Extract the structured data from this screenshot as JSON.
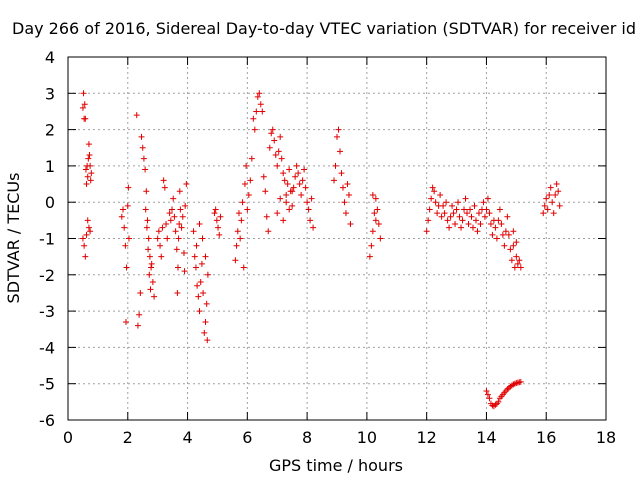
{
  "chart_data": {
    "type": "scatter",
    "title": "Day 266 of 2016, Sidereal Day-to-day VTEC variation (SDTVAR) for receiver id",
    "xlabel": "GPS time / hours",
    "ylabel": "SDTVAR / TECUs",
    "xlim": [
      0,
      18
    ],
    "ylim": [
      -6,
      4
    ],
    "xticks": [
      "0",
      "2",
      "4",
      "6",
      "8",
      "10",
      "12",
      "14",
      "16",
      "18"
    ],
    "yticks": [
      "4",
      "3",
      "2",
      "1",
      "0",
      "-1",
      "-2",
      "-3",
      "-4",
      "-5",
      "-6"
    ],
    "grid": true,
    "marker": "+",
    "color": "#e00000",
    "series": [
      {
        "name": "SDTVAR",
        "points": [
          [
            0.5,
            2.6
          ],
          [
            0.52,
            3.0
          ],
          [
            0.54,
            2.3
          ],
          [
            0.56,
            2.7
          ],
          [
            0.58,
            2.3
          ],
          [
            0.6,
            0.9
          ],
          [
            0.62,
            0.5
          ],
          [
            0.64,
            1.0
          ],
          [
            0.66,
            0.7
          ],
          [
            0.68,
            1.2
          ],
          [
            0.7,
            1.6
          ],
          [
            0.72,
            1.3
          ],
          [
            0.74,
            1.0
          ],
          [
            0.76,
            0.6
          ],
          [
            0.78,
            0.8
          ],
          [
            0.5,
            -1.0
          ],
          [
            0.54,
            -1.2
          ],
          [
            0.58,
            -1.5
          ],
          [
            0.62,
            -0.9
          ],
          [
            0.66,
            -0.5
          ],
          [
            0.7,
            -0.7
          ],
          [
            0.74,
            -0.8
          ],
          [
            1.8,
            -0.4
          ],
          [
            1.84,
            -0.2
          ],
          [
            1.88,
            -0.7
          ],
          [
            1.92,
            -1.2
          ],
          [
            1.96,
            -1.8
          ],
          [
            2.0,
            -0.1
          ],
          [
            2.02,
            0.4
          ],
          [
            1.94,
            -3.3
          ],
          [
            2.04,
            -1.0
          ],
          [
            2.3,
            2.4
          ],
          [
            2.34,
            -3.4
          ],
          [
            2.38,
            -3.1
          ],
          [
            2.42,
            -2.5
          ],
          [
            2.46,
            1.8
          ],
          [
            2.5,
            1.5
          ],
          [
            2.54,
            1.2
          ],
          [
            2.58,
            0.9
          ],
          [
            2.62,
            0.3
          ],
          [
            2.66,
            -0.5
          ],
          [
            2.7,
            -1.0
          ],
          [
            2.74,
            -1.5
          ],
          [
            2.78,
            -1.8
          ],
          [
            2.6,
            -0.2
          ],
          [
            2.64,
            -0.7
          ],
          [
            2.68,
            -1.3
          ],
          [
            2.72,
            -2.0
          ],
          [
            2.76,
            -2.4
          ],
          [
            2.8,
            -1.7
          ],
          [
            2.84,
            -2.2
          ],
          [
            2.88,
            -2.6
          ],
          [
            3.0,
            -1.0
          ],
          [
            3.04,
            -0.8
          ],
          [
            3.08,
            -1.2
          ],
          [
            3.12,
            -1.5
          ],
          [
            3.16,
            -0.7
          ],
          [
            3.2,
            0.6
          ],
          [
            3.24,
            0.4
          ],
          [
            3.28,
            -0.6
          ],
          [
            3.32,
            -1.0
          ],
          [
            3.4,
            -0.3
          ],
          [
            3.44,
            -0.5
          ],
          [
            3.48,
            -0.2
          ],
          [
            3.52,
            0.1
          ],
          [
            3.56,
            -0.4
          ],
          [
            3.6,
            -0.8
          ],
          [
            3.64,
            -1.3
          ],
          [
            3.66,
            -2.5
          ],
          [
            3.68,
            -1.8
          ],
          [
            3.7,
            -1.0
          ],
          [
            3.72,
            -0.6
          ],
          [
            3.74,
            0.3
          ],
          [
            3.76,
            -0.2
          ],
          [
            3.8,
            -0.7
          ],
          [
            3.84,
            -0.4
          ],
          [
            3.88,
            -1.4
          ],
          [
            3.9,
            -1.9
          ],
          [
            3.92,
            -0.1
          ],
          [
            3.96,
            0.5
          ],
          [
            4.2,
            -0.8
          ],
          [
            4.24,
            -1.5
          ],
          [
            4.28,
            -1.8
          ],
          [
            4.32,
            -2.3
          ],
          [
            4.36,
            -2.6
          ],
          [
            4.4,
            -3.0
          ],
          [
            4.44,
            -2.2
          ],
          [
            4.48,
            -1.7
          ],
          [
            4.52,
            -2.5
          ],
          [
            4.56,
            -3.6
          ],
          [
            4.6,
            -3.3
          ],
          [
            4.64,
            -2.8
          ],
          [
            4.68,
            -2.0
          ],
          [
            4.3,
            -1.2
          ],
          [
            4.4,
            -0.6
          ],
          [
            4.5,
            -1.0
          ],
          [
            4.6,
            -1.5
          ],
          [
            4.66,
            -3.8
          ],
          [
            4.9,
            -0.3
          ],
          [
            4.94,
            -0.2
          ],
          [
            4.98,
            -0.5
          ],
          [
            5.02,
            -0.7
          ],
          [
            5.06,
            -0.9
          ],
          [
            5.1,
            -0.4
          ],
          [
            5.6,
            -1.6
          ],
          [
            5.64,
            -1.2
          ],
          [
            5.68,
            -0.8
          ],
          [
            5.72,
            -0.3
          ],
          [
            5.76,
            -1.0
          ],
          [
            5.8,
            -0.5
          ],
          [
            5.84,
            0.0
          ],
          [
            5.88,
            -1.8
          ],
          [
            5.92,
            0.5
          ],
          [
            5.96,
            1.0
          ],
          [
            6.0,
            -0.2
          ],
          [
            6.05,
            0.2
          ],
          [
            6.1,
            0.6
          ],
          [
            6.15,
            1.2
          ],
          [
            6.2,
            2.3
          ],
          [
            6.25,
            2.0
          ],
          [
            6.3,
            2.5
          ],
          [
            6.35,
            2.9
          ],
          [
            6.4,
            3.0
          ],
          [
            6.45,
            2.7
          ],
          [
            6.5,
            2.5
          ],
          [
            6.55,
            0.7
          ],
          [
            6.6,
            0.3
          ],
          [
            6.65,
            -0.4
          ],
          [
            6.7,
            -0.8
          ],
          [
            6.75,
            1.5
          ],
          [
            6.8,
            1.9
          ],
          [
            6.85,
            2.0
          ],
          [
            6.9,
            1.7
          ],
          [
            6.95,
            1.3
          ],
          [
            7.0,
            1.0
          ],
          [
            7.05,
            1.4
          ],
          [
            7.1,
            1.8
          ],
          [
            7.15,
            1.2
          ],
          [
            7.2,
            0.8
          ],
          [
            7.25,
            0.6
          ],
          [
            7.3,
            0.2
          ],
          [
            7.35,
            0.5
          ],
          [
            7.4,
            0.9
          ],
          [
            7.45,
            0.3
          ],
          [
            7.5,
            -0.1
          ],
          [
            7.55,
            0.4
          ],
          [
            7.6,
            0.7
          ],
          [
            7.65,
            1.0
          ],
          [
            7.7,
            0.8
          ],
          [
            7.75,
            0.5
          ],
          [
            7.8,
            0.2
          ],
          [
            7.85,
            0.6
          ],
          [
            7.9,
            0.9
          ],
          [
            7.95,
            0.4
          ],
          [
            8.0,
            0.0
          ],
          [
            8.05,
            -0.2
          ],
          [
            8.1,
            -0.5
          ],
          [
            8.15,
            0.1
          ],
          [
            8.2,
            -0.7
          ],
          [
            7.0,
            -0.3
          ],
          [
            7.1,
            0.1
          ],
          [
            7.2,
            -0.5
          ],
          [
            7.3,
            0.0
          ],
          [
            7.4,
            -0.2
          ],
          [
            7.5,
            0.3
          ],
          [
            8.9,
            0.6
          ],
          [
            8.95,
            1.0
          ],
          [
            9.0,
            1.8
          ],
          [
            9.05,
            2.0
          ],
          [
            9.1,
            1.4
          ],
          [
            9.15,
            0.8
          ],
          [
            9.2,
            0.4
          ],
          [
            9.25,
            0.0
          ],
          [
            9.3,
            -0.3
          ],
          [
            9.35,
            0.5
          ],
          [
            9.4,
            0.2
          ],
          [
            9.45,
            -0.6
          ],
          [
            10.1,
            -1.5
          ],
          [
            10.15,
            -1.2
          ],
          [
            10.2,
            -0.8
          ],
          [
            10.25,
            -0.3
          ],
          [
            10.3,
            0.1
          ],
          [
            10.35,
            -0.2
          ],
          [
            10.4,
            -0.6
          ],
          [
            10.45,
            -1.0
          ],
          [
            10.2,
            0.2
          ],
          [
            10.3,
            -0.5
          ],
          [
            12.0,
            -0.8
          ],
          [
            12.05,
            -0.5
          ],
          [
            12.1,
            -0.2
          ],
          [
            12.15,
            0.1
          ],
          [
            12.2,
            0.4
          ],
          [
            12.25,
            0.3
          ],
          [
            12.3,
            0.0
          ],
          [
            12.35,
            -0.3
          ],
          [
            12.4,
            -0.1
          ],
          [
            12.45,
            0.2
          ],
          [
            12.5,
            -0.4
          ],
          [
            12.55,
            -0.1
          ],
          [
            12.6,
            -0.3
          ],
          [
            12.65,
            0.0
          ],
          [
            12.7,
            -0.5
          ],
          [
            12.75,
            -0.7
          ],
          [
            12.8,
            -0.4
          ],
          [
            12.85,
            -0.1
          ],
          [
            12.9,
            -0.3
          ],
          [
            12.95,
            -0.6
          ],
          [
            13.0,
            -0.2
          ],
          [
            13.05,
            0.0
          ],
          [
            13.1,
            -0.4
          ],
          [
            13.15,
            -0.7
          ],
          [
            13.2,
            -0.5
          ],
          [
            13.25,
            -0.2
          ],
          [
            13.3,
            0.1
          ],
          [
            13.35,
            -0.3
          ],
          [
            13.4,
            -0.6
          ],
          [
            13.45,
            -0.2
          ],
          [
            13.5,
            -0.4
          ],
          [
            13.55,
            -0.7
          ],
          [
            13.6,
            -0.1
          ],
          [
            13.65,
            -0.5
          ],
          [
            13.7,
            -0.8
          ],
          [
            13.75,
            -0.3
          ],
          [
            13.8,
            -0.6
          ],
          [
            13.85,
            -0.2
          ],
          [
            13.9,
            0.0
          ],
          [
            13.95,
            -0.4
          ],
          [
            14.0,
            -0.2
          ],
          [
            14.05,
            0.1
          ],
          [
            14.1,
            -0.3
          ],
          [
            14.15,
            -0.6
          ],
          [
            14.2,
            -0.9
          ],
          [
            14.25,
            -0.5
          ],
          [
            14.3,
            -0.7
          ],
          [
            14.35,
            -1.0
          ],
          [
            14.4,
            -0.5
          ],
          [
            14.45,
            -0.2
          ],
          [
            14.5,
            -0.6
          ],
          [
            14.55,
            -0.9
          ],
          [
            14.6,
            -1.2
          ],
          [
            14.65,
            -0.8
          ],
          [
            14.7,
            -0.4
          ],
          [
            14.75,
            -0.9
          ],
          [
            14.8,
            -1.3
          ],
          [
            14.85,
            -1.6
          ],
          [
            14.9,
            -1.2
          ],
          [
            14.95,
            -1.8
          ],
          [
            15.0,
            -1.5
          ],
          [
            15.05,
            -1.7
          ],
          [
            15.1,
            -1.6
          ],
          [
            15.15,
            -1.8
          ],
          [
            14.9,
            -0.8
          ],
          [
            15.0,
            -1.1
          ],
          [
            14.0,
            -5.2
          ],
          [
            14.05,
            -5.3
          ],
          [
            14.1,
            -5.4
          ],
          [
            14.15,
            -5.55
          ],
          [
            14.2,
            -5.6
          ],
          [
            14.25,
            -5.62
          ],
          [
            14.3,
            -5.58
          ],
          [
            14.35,
            -5.55
          ],
          [
            14.4,
            -5.5
          ],
          [
            14.45,
            -5.4
          ],
          [
            14.5,
            -5.35
          ],
          [
            14.55,
            -5.3
          ],
          [
            14.6,
            -5.25
          ],
          [
            14.65,
            -5.2
          ],
          [
            14.7,
            -5.15
          ],
          [
            14.75,
            -5.12
          ],
          [
            14.8,
            -5.08
          ],
          [
            14.85,
            -5.05
          ],
          [
            14.9,
            -5.02
          ],
          [
            14.95,
            -5.0
          ],
          [
            15.0,
            -4.98
          ],
          [
            15.05,
            -4.97
          ],
          [
            15.1,
            -4.96
          ],
          [
            15.15,
            -4.95
          ],
          [
            15.9,
            -0.3
          ],
          [
            15.95,
            -0.1
          ],
          [
            16.0,
            0.1
          ],
          [
            16.05,
            -0.2
          ],
          [
            16.1,
            0.2
          ],
          [
            16.15,
            0.4
          ],
          [
            16.2,
            0.0
          ],
          [
            16.25,
            -0.3
          ],
          [
            16.3,
            0.2
          ],
          [
            16.35,
            0.5
          ],
          [
            16.4,
            0.3
          ],
          [
            16.45,
            -0.1
          ]
        ]
      }
    ]
  }
}
